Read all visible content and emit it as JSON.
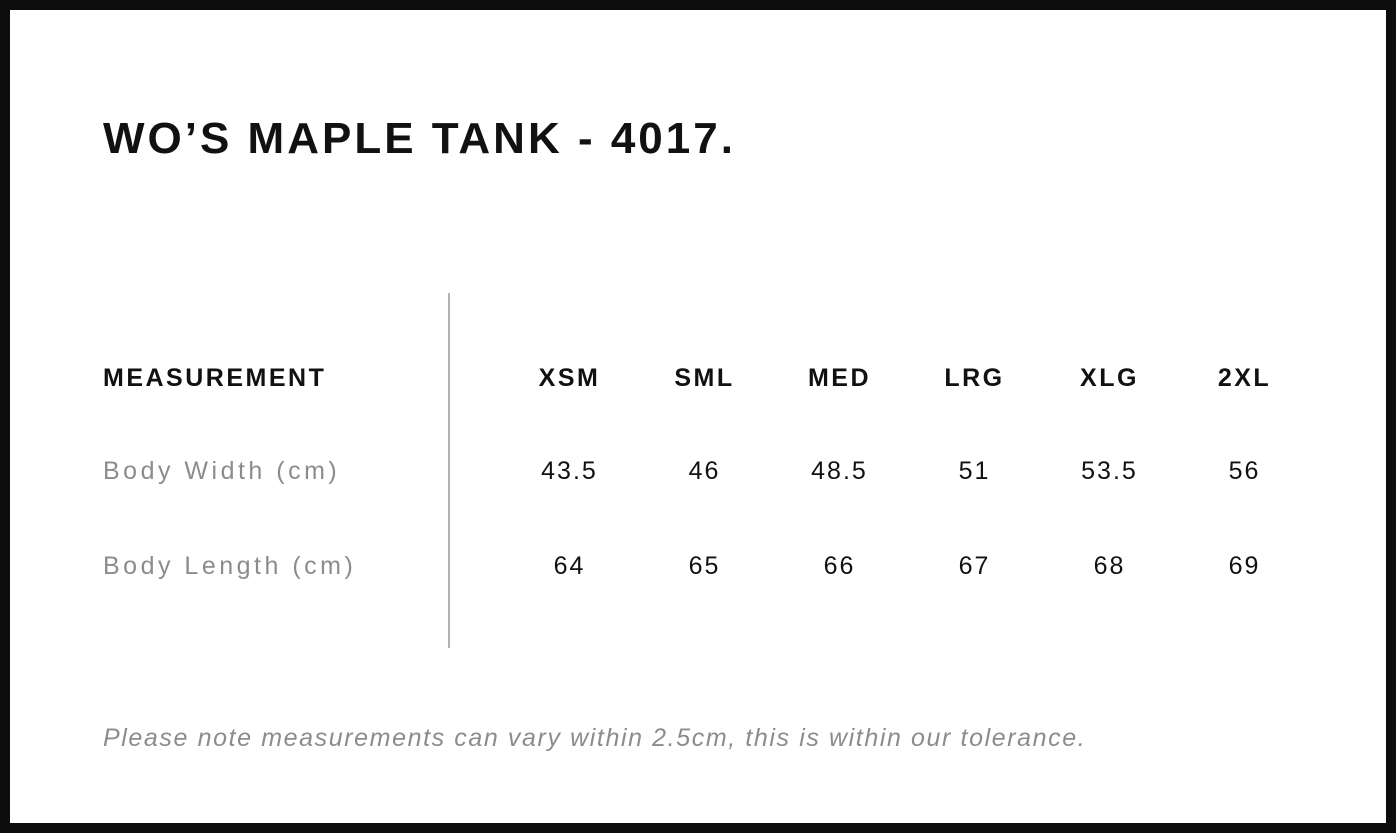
{
  "chart_data": {
    "type": "table",
    "title": "WO’S MAPLE TANK - 4017.",
    "columns": [
      "MEASUREMENT",
      "XSM",
      "SML",
      "MED",
      "LRG",
      "XLG",
      "2XL"
    ],
    "rows": [
      [
        "Body Width (cm)",
        "43.5",
        "46",
        "48.5",
        "51",
        "53.5",
        "56"
      ],
      [
        "Body Length (cm)",
        "64",
        "65",
        "66",
        "67",
        "68",
        "69"
      ]
    ],
    "note": "Please note measurements can vary within 2.5cm, this is within our tolerance."
  },
  "colors": {
    "text_primary": "#111111",
    "text_muted": "#8c8c8c",
    "divider": "#b3b3b3",
    "frame_border": "#0d0d0d",
    "background": "#ffffff"
  }
}
